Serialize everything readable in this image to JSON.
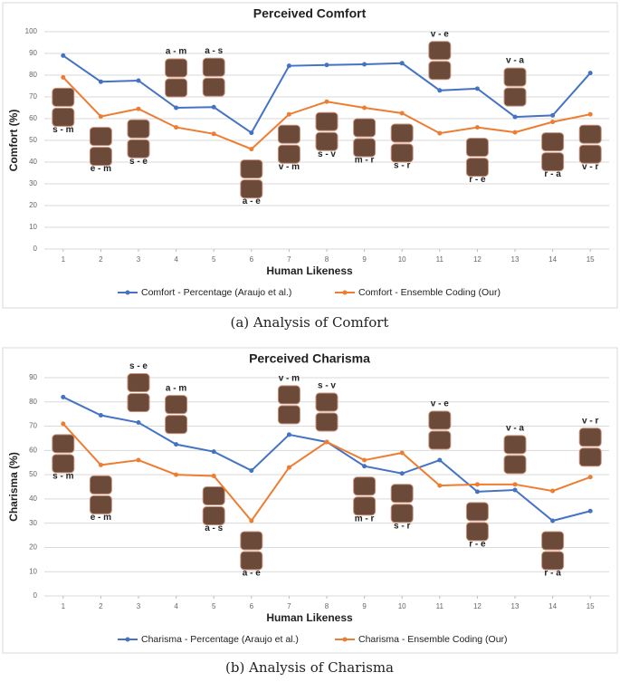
{
  "chart_data": [
    {
      "type": "line",
      "title": "Perceived Comfort",
      "xlabel": "Human Likeness",
      "ylabel": "Comfort (%)",
      "caption": "(a) Analysis of Comfort",
      "x": [
        1,
        2,
        3,
        4,
        5,
        6,
        7,
        8,
        9,
        10,
        11,
        12,
        13,
        14,
        15
      ],
      "xlim": [
        0.5,
        15.5
      ],
      "xticks": [
        1,
        2,
        3,
        4,
        5,
        6,
        7,
        8,
        9,
        10,
        11,
        12,
        13,
        14,
        15
      ],
      "ylim": [
        0,
        100
      ],
      "yticks": [
        0,
        10,
        20,
        30,
        40,
        50,
        60,
        70,
        80,
        90,
        100
      ],
      "grid": true,
      "legend": "bottom",
      "series": [
        {
          "name": "Comfort - Percentage (Araujo et al.)",
          "color": "#4472c4",
          "values": [
            89,
            77,
            77.5,
            65,
            65.3,
            53.5,
            84.3,
            84.7,
            85,
            85.5,
            73,
            73.8,
            60.8,
            61.5,
            81
          ]
        },
        {
          "name": "Comfort - Ensemble Coding (Our)",
          "color": "#ed7d31",
          "values": [
            79,
            61,
            64.5,
            56,
            53,
            46,
            62,
            67.8,
            65,
            62.5,
            53.3,
            56,
            53.7,
            58.5,
            62
          ]
        }
      ],
      "annotations": [
        {
          "x": 1,
          "text": "s - m"
        },
        {
          "x": 2,
          "text": "e - m"
        },
        {
          "x": 3,
          "text": "s - e"
        },
        {
          "x": 4,
          "text": "a - m"
        },
        {
          "x": 5,
          "text": "a - s"
        },
        {
          "x": 6,
          "text": "a - e"
        },
        {
          "x": 7,
          "text": "v - m"
        },
        {
          "x": 8,
          "text": "s - v"
        },
        {
          "x": 9,
          "text": "m - r"
        },
        {
          "x": 10,
          "text": "s - r"
        },
        {
          "x": 11,
          "text": "v - e"
        },
        {
          "x": 12,
          "text": "r - e"
        },
        {
          "x": 13,
          "text": "v - a"
        },
        {
          "x": 14,
          "text": "r - a"
        },
        {
          "x": 15,
          "text": "v - r"
        }
      ]
    },
    {
      "type": "line",
      "title": "Perceived Charisma",
      "xlabel": "Human Likeness",
      "ylabel": "Charisma (%)",
      "caption": "(b) Analysis of Charisma",
      "x": [
        1,
        2,
        3,
        4,
        5,
        6,
        7,
        8,
        9,
        10,
        11,
        12,
        13,
        14,
        15
      ],
      "xlim": [
        0.5,
        15.5
      ],
      "xticks": [
        1,
        2,
        3,
        4,
        5,
        6,
        7,
        8,
        9,
        10,
        11,
        12,
        13,
        14,
        15
      ],
      "ylim": [
        0,
        90
      ],
      "yticks": [
        0,
        10,
        20,
        30,
        40,
        50,
        60,
        70,
        80,
        90
      ],
      "grid": true,
      "legend": "bottom",
      "series": [
        {
          "name": "Charisma - Percentage (Araujo et al.)",
          "color": "#4472c4",
          "values": [
            82,
            74.5,
            71.5,
            62.5,
            59.5,
            51.7,
            66.5,
            63.5,
            53.5,
            50.5,
            56,
            43,
            43.7,
            31,
            35
          ]
        },
        {
          "name": "Charisma - Ensemble Coding (Our)",
          "color": "#ed7d31",
          "values": [
            71,
            54,
            56,
            50,
            49.5,
            31,
            53,
            63.5,
            56,
            59,
            45.5,
            46,
            46,
            43.3,
            49
          ]
        }
      ],
      "annotations": [
        {
          "x": 1,
          "text": "s - m"
        },
        {
          "x": 2,
          "text": "e - m"
        },
        {
          "x": 3,
          "text": "s - e"
        },
        {
          "x": 4,
          "text": "a - m"
        },
        {
          "x": 5,
          "text": "a - s"
        },
        {
          "x": 6,
          "text": "a - e"
        },
        {
          "x": 7,
          "text": "v - m"
        },
        {
          "x": 8,
          "text": "s - v"
        },
        {
          "x": 9,
          "text": "m - r"
        },
        {
          "x": 10,
          "text": "s - r"
        },
        {
          "x": 11,
          "text": "v - e"
        },
        {
          "x": 12,
          "text": "r - e"
        },
        {
          "x": 13,
          "text": "v - a"
        },
        {
          "x": 14,
          "text": "r - a"
        },
        {
          "x": 15,
          "text": "v - r"
        }
      ]
    }
  ]
}
